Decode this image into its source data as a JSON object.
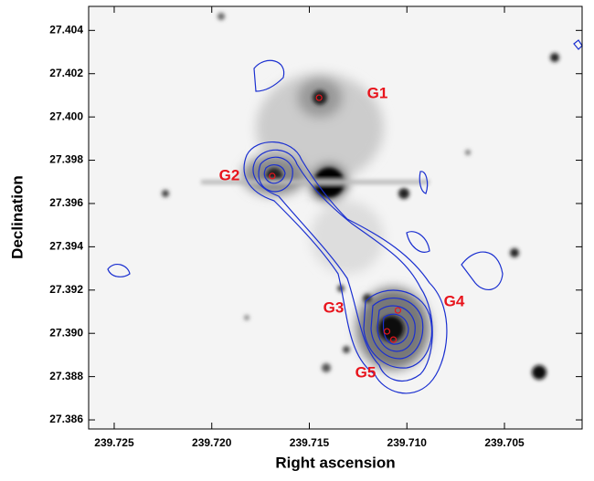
{
  "chart_data": {
    "type": "scatter",
    "xlabel": "Right ascension",
    "ylabel": "Declination",
    "xlim": [
      239.72631,
      239.70102
    ],
    "ylim": [
      27.38558,
      27.40511
    ],
    "xticks": [
      239.725,
      {
        "value": 239.72,
        "label": "239.720"
      },
      239.715,
      {
        "value": 239.71,
        "label": "239.710"
      },
      239.705
    ],
    "yticks": [
      27.386,
      27.388,
      {
        "value": 27.39,
        "label": "27.390"
      },
      27.392,
      27.394,
      27.396,
      27.398,
      {
        "value": 27.4,
        "label": "27.400"
      },
      27.402,
      27.404
    ],
    "series": [
      {
        "color": "#e8141c",
        "x": [
          239.7145,
          239.7169,
          239.71046,
          239.71102,
          239.71069
        ],
        "values": [
          27.40089,
          27.39727,
          27.39106,
          27.39009,
          27.38971
        ]
      }
    ],
    "annotations": [
      "G1",
      "G2",
      "G3",
      "G4",
      "G5"
    ]
  }
}
